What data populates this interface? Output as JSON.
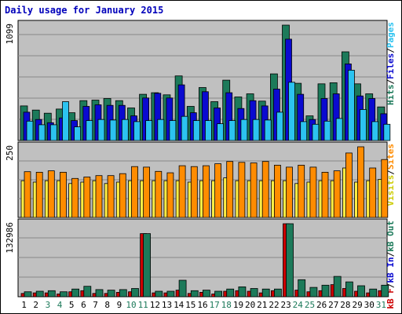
{
  "title": "Daily usage for January 2015",
  "colors": {
    "hits": "#1c7a5a",
    "files": "#0a0ad0",
    "pages": "#2cc3f0",
    "visits": "#ffee44",
    "sites": "#ff8c00",
    "kbin": "#1c7a5a",
    "kbout": "#1c7a5a",
    "kbf": "#cc0000",
    "panel_bg": "#c0c0c0",
    "label_blue": "#0000bb",
    "weekend_green": "#1c7a5a"
  },
  "chart_data": [
    {
      "type": "bar",
      "name": "hits-files-pages",
      "ytick": "1099",
      "ymax": 1099,
      "axis_label": [
        {
          "text": "Hits",
          "color": "#1c7a5a"
        },
        {
          "text": "/",
          "color": "#000000"
        },
        {
          "text": "Files",
          "color": "#0a0ad0"
        },
        {
          "text": "/",
          "color": "#000000"
        },
        {
          "text": "Pages",
          "color": "#2cc3f0"
        }
      ],
      "categories": [
        "1",
        "2",
        "3",
        "4",
        "5",
        "6",
        "7",
        "8",
        "9",
        "10",
        "11",
        "12",
        "13",
        "14",
        "15",
        "16",
        "17",
        "18",
        "19",
        "20",
        "21",
        "22",
        "23",
        "24",
        "25",
        "26",
        "27",
        "28",
        "29",
        "30",
        "31"
      ],
      "weekend_days": [
        "3",
        "4",
        "10",
        "11",
        "17",
        "18",
        "24",
        "25",
        "31"
      ],
      "series": [
        {
          "name": "Hits",
          "values": [
            330,
            290,
            260,
            300,
            265,
            380,
            385,
            400,
            380,
            310,
            440,
            455,
            435,
            615,
            325,
            505,
            370,
            575,
            415,
            445,
            375,
            635,
            1099,
            545,
            235,
            540,
            550,
            845,
            540,
            445,
            320
          ]
        },
        {
          "name": "Files",
          "values": [
            270,
            200,
            170,
            215,
            190,
            325,
            340,
            335,
            335,
            235,
            405,
            450,
            405,
            530,
            265,
            465,
            310,
            455,
            305,
            380,
            330,
            490,
            965,
            440,
            200,
            400,
            445,
            730,
            425,
            400,
            255
          ]
        },
        {
          "name": "Pages",
          "values": [
            185,
            150,
            150,
            370,
            130,
            190,
            200,
            195,
            200,
            180,
            190,
            200,
            190,
            230,
            190,
            190,
            160,
            190,
            200,
            200,
            195,
            270,
            555,
            180,
            155,
            185,
            210,
            670,
            295,
            180,
            155
          ]
        }
      ]
    },
    {
      "type": "bar",
      "name": "visits-sites",
      "ytick": "250",
      "ymax": 250,
      "axis_label": [
        {
          "text": "Visits",
          "color": "#cccc00"
        },
        {
          "text": "/",
          "color": "#000000"
        },
        {
          "text": "Sites",
          "color": "#ff8c00"
        }
      ],
      "categories": [
        "1",
        "2",
        "3",
        "4",
        "5",
        "6",
        "7",
        "8",
        "9",
        "10",
        "11",
        "12",
        "13",
        "14",
        "15",
        "16",
        "17",
        "18",
        "19",
        "20",
        "21",
        "22",
        "23",
        "24",
        "25",
        "26",
        "27",
        "28",
        "29",
        "30",
        "31"
      ],
      "series": [
        {
          "name": "Visits",
          "values": [
            130,
            125,
            130,
            130,
            120,
            125,
            130,
            120,
            125,
            130,
            130,
            130,
            130,
            130,
            125,
            130,
            130,
            140,
            130,
            130,
            130,
            130,
            130,
            120,
            125,
            130,
            130,
            175,
            125,
            130,
            135
          ]
        },
        {
          "name": "Sites",
          "values": [
            162,
            160,
            165,
            160,
            138,
            143,
            148,
            148,
            155,
            180,
            178,
            163,
            158,
            183,
            180,
            183,
            190,
            198,
            195,
            193,
            198,
            185,
            178,
            185,
            178,
            160,
            165,
            228,
            250,
            175,
            205
          ]
        }
      ]
    },
    {
      "type": "bar",
      "name": "kb-in-out",
      "ytick": "132986",
      "ymax": 132986,
      "axis_label": [
        {
          "text": "kB F",
          "color": "#cc0000"
        },
        {
          "text": "/",
          "color": "#000000"
        },
        {
          "text": "kB In",
          "color": "#0a0ad0"
        },
        {
          "text": "/",
          "color": "#000000"
        },
        {
          "text": "kB Out",
          "color": "#1c7a5a"
        }
      ],
      "categories": [
        "1",
        "2",
        "3",
        "4",
        "5",
        "6",
        "7",
        "8",
        "9",
        "10",
        "11",
        "12",
        "13",
        "14",
        "15",
        "16",
        "17",
        "18",
        "19",
        "20",
        "21",
        "22",
        "23",
        "24",
        "25",
        "26",
        "27",
        "28",
        "29",
        "30",
        "31"
      ],
      "series": [
        {
          "name": "kB F",
          "values": [
            6000,
            7000,
            7000,
            5000,
            9000,
            11000,
            6000,
            6000,
            8000,
            9000,
            115000,
            7000,
            7000,
            12000,
            6000,
            8000,
            5000,
            10000,
            11000,
            10000,
            7000,
            11000,
            132986,
            12000,
            9000,
            11000,
            22000,
            15000,
            10000,
            7000,
            11000
          ]
        },
        {
          "name": "kB Out",
          "values": [
            9000,
            10000,
            11000,
            9000,
            14000,
            19000,
            13000,
            12000,
            13000,
            15000,
            115000,
            10000,
            10000,
            30000,
            11000,
            12000,
            10000,
            14000,
            18000,
            15000,
            14000,
            14000,
            132986,
            31000,
            17000,
            21000,
            37000,
            27000,
            20000,
            14000,
            21000
          ]
        }
      ]
    }
  ]
}
